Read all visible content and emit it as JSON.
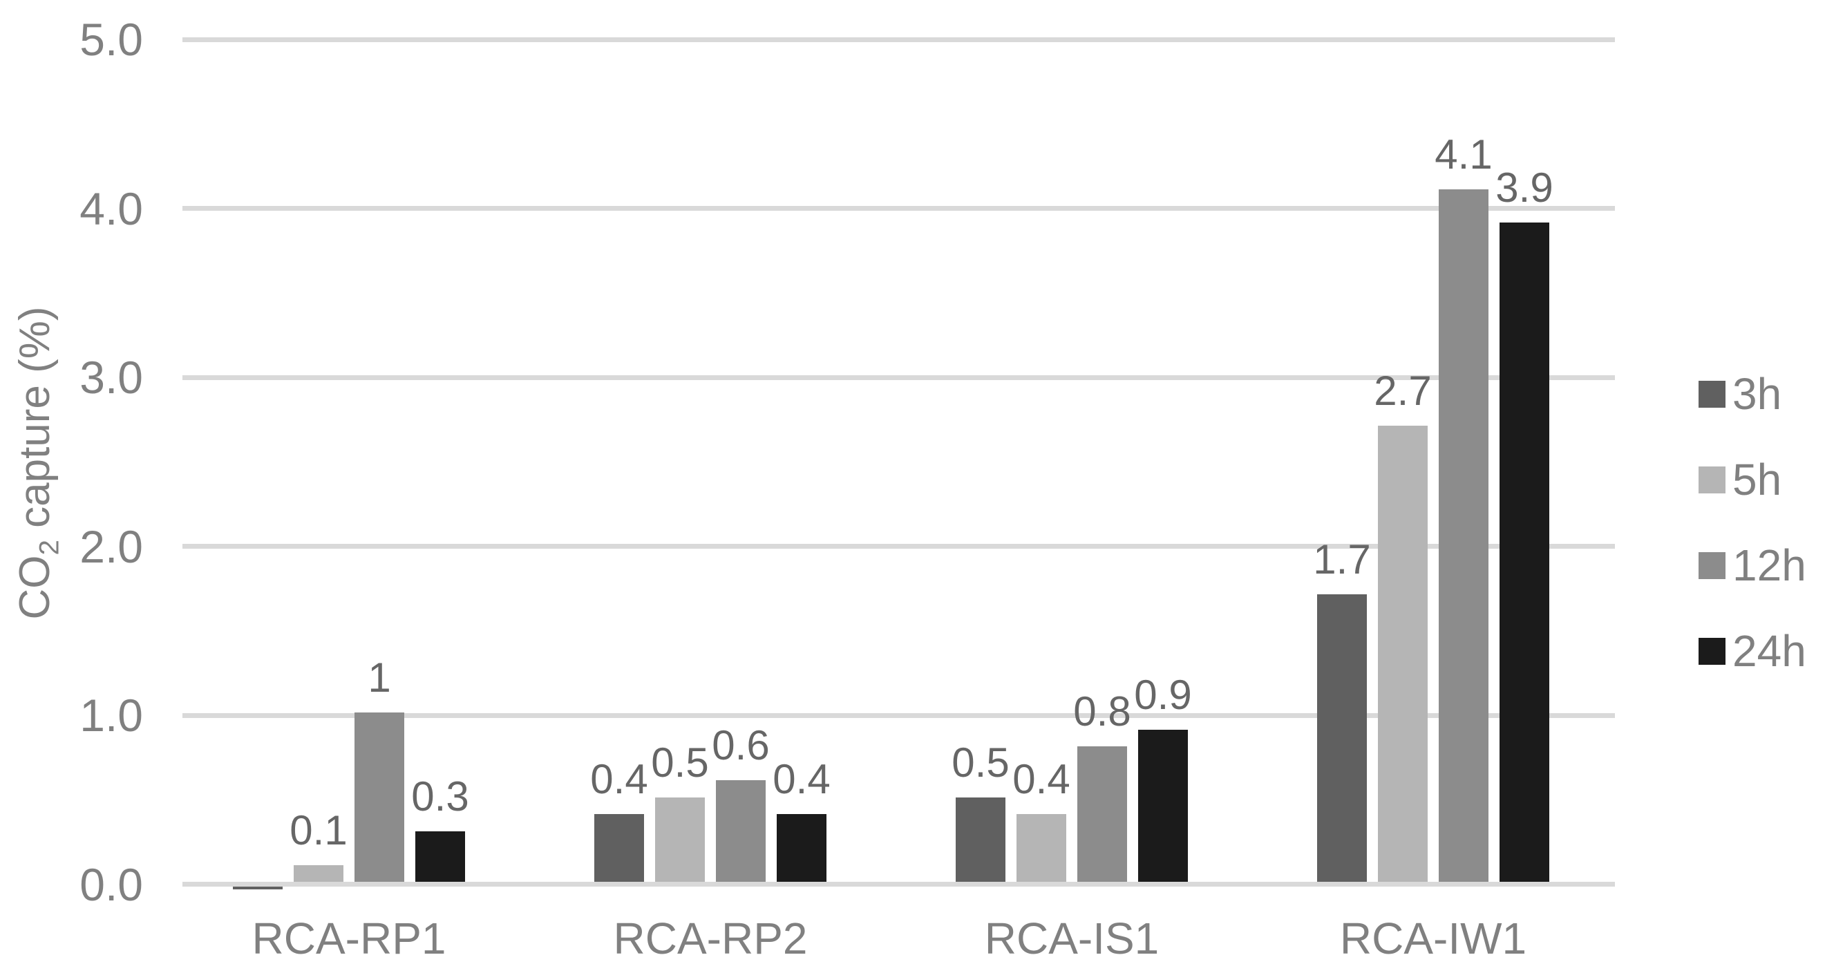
{
  "chart_data": {
    "type": "bar",
    "title": "",
    "ylabel_prefix": "CO",
    "ylabel_sub": "2",
    "ylabel_suffix": " capture (%)",
    "categories": [
      "RCA-RP1",
      "RCA-RP2",
      "RCA-IS1",
      "RCA-IW1"
    ],
    "series": [
      {
        "name": "3h",
        "color": "#606060",
        "values": [
          -0.02,
          0.4,
          0.5,
          1.7
        ],
        "labels": [
          "",
          "0.4",
          "0.5",
          "1.7"
        ]
      },
      {
        "name": "5h",
        "color": "#b5b5b5",
        "values": [
          0.1,
          0.5,
          0.4,
          2.7
        ],
        "labels": [
          "0.1",
          "0.5",
          "0.4",
          "2.7"
        ]
      },
      {
        "name": "12h",
        "color": "#8c8c8c",
        "values": [
          1,
          0.6,
          0.8,
          4.1
        ],
        "labels": [
          "1",
          "0.6",
          "0.8",
          "4.1"
        ]
      },
      {
        "name": "24h",
        "color": "#1b1b1b",
        "values": [
          0.3,
          0.4,
          0.9,
          3.9
        ],
        "labels": [
          "0.3",
          "0.4",
          "0.9",
          "3.9"
        ]
      }
    ],
    "y_ticks": [
      "0.0",
      "1.0",
      "2.0",
      "3.0",
      "4.0",
      "5.0"
    ],
    "ylim": [
      0,
      5
    ],
    "grid": "horizontal",
    "legend_position": "right",
    "colors": {
      "gridline": "#d9d9d9",
      "axis_text": "#808080",
      "data_label": "#666666",
      "background": "#ffffff"
    }
  }
}
